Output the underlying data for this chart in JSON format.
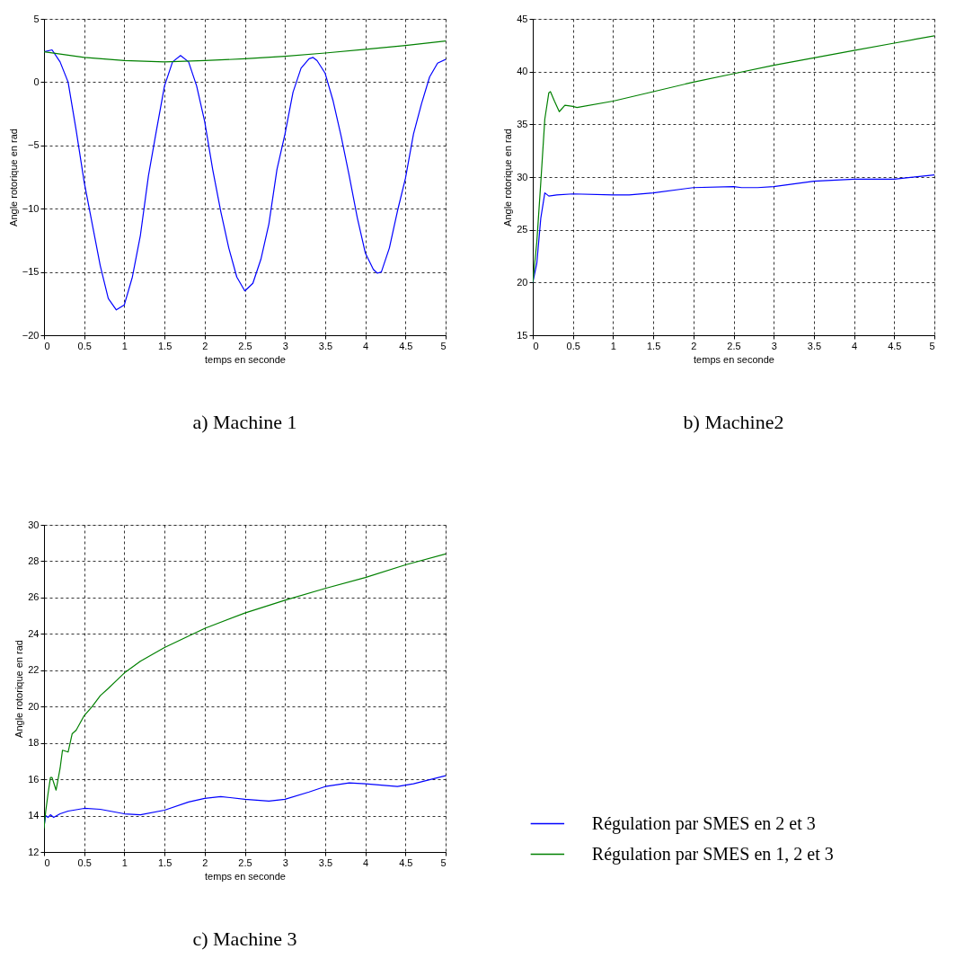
{
  "chart_data": [
    {
      "type": "line",
      "title": "a) Machine 1",
      "xlabel": "temps en seconde",
      "ylabel": "Angle rotorique en rad",
      "xlim": [
        0,
        5
      ],
      "xticks": [
        0,
        0.5,
        1,
        1.5,
        2,
        2.5,
        3,
        3.5,
        4,
        4.5,
        5
      ],
      "ylim": [
        -20,
        5
      ],
      "yticks": [
        -20,
        -15,
        -10,
        -5,
        0,
        5
      ],
      "grid": true,
      "line_style": "solid",
      "series": [
        {
          "color": "#0000ff",
          "x": [
            0,
            0.1,
            0.2,
            0.3,
            0.4,
            0.5,
            0.6,
            0.7,
            0.8,
            0.9,
            1.0,
            1.1,
            1.2,
            1.3,
            1.4,
            1.5,
            1.6,
            1.7,
            1.8,
            1.9,
            2.0,
            2.1,
            2.2,
            2.3,
            2.4,
            2.5,
            2.6,
            2.7,
            2.8,
            2.9,
            3.0,
            3.1,
            3.2,
            3.3,
            3.35,
            3.4,
            3.5,
            3.6,
            3.7,
            3.8,
            3.9,
            4.0,
            4.1,
            4.15,
            4.2,
            4.3,
            4.4,
            4.5,
            4.6,
            4.7,
            4.8,
            4.9,
            5.0
          ],
          "values": [
            2.4,
            2.55,
            1.6,
            0,
            -3.8,
            -7.9,
            -11.2,
            -14.5,
            -17.1,
            -18.0,
            -17.6,
            -15.4,
            -12.1,
            -7.4,
            -3.8,
            -0.3,
            1.6,
            2.1,
            1.6,
            -0.3,
            -3.1,
            -6.9,
            -10.2,
            -13.1,
            -15.4,
            -16.5,
            -15.9,
            -14.0,
            -11.2,
            -6.9,
            -4.1,
            -0.8,
            1.1,
            1.85,
            1.95,
            1.7,
            0.7,
            -1.5,
            -4.3,
            -7.4,
            -10.7,
            -13.5,
            -14.8,
            -15.1,
            -15.0,
            -13.1,
            -10.2,
            -7.6,
            -4.1,
            -1.7,
            0.4,
            1.5,
            1.8
          ]
        },
        {
          "color": "#008000",
          "x": [
            0,
            0.5,
            1.0,
            1.5,
            2.0,
            2.5,
            3.0,
            3.5,
            4.0,
            4.5,
            5.0
          ],
          "values": [
            2.4,
            1.95,
            1.7,
            1.6,
            1.7,
            1.85,
            2.05,
            2.3,
            2.6,
            2.9,
            3.25
          ]
        }
      ]
    },
    {
      "type": "line",
      "title": "b) Machine2",
      "xlabel": "temps en seconde",
      "ylabel": "Angle rotorique en rad",
      "xlim": [
        0,
        5
      ],
      "xticks": [
        0,
        0.5,
        1,
        1.5,
        2,
        2.5,
        3,
        3.5,
        4,
        4.5,
        5
      ],
      "ylim": [
        15,
        45
      ],
      "yticks": [
        15,
        20,
        25,
        30,
        35,
        40,
        45
      ],
      "grid": true,
      "line_style": "solid",
      "series": [
        {
          "color": "#0000ff",
          "x": [
            0,
            0.05,
            0.1,
            0.15,
            0.2,
            0.3,
            0.5,
            1.0,
            1.2,
            1.5,
            2.0,
            2.5,
            2.6,
            2.8,
            3.0,
            3.5,
            4.0,
            4.5,
            5.0
          ],
          "values": [
            20,
            21.8,
            26.1,
            28.5,
            28.2,
            28.3,
            28.4,
            28.3,
            28.3,
            28.5,
            29.0,
            29.1,
            29.0,
            29.0,
            29.1,
            29.6,
            29.8,
            29.8,
            30.2
          ]
        },
        {
          "color": "#008000",
          "x": [
            0,
            0.05,
            0.1,
            0.15,
            0.2,
            0.22,
            0.27,
            0.33,
            0.4,
            0.5,
            0.55,
            1.0,
            1.5,
            2.0,
            2.5,
            3.0,
            3.5,
            4.0,
            4.5,
            5.0
          ],
          "values": [
            20,
            23.8,
            29.5,
            35.5,
            38.0,
            38.1,
            37.2,
            36.2,
            36.8,
            36.7,
            36.6,
            37.2,
            38.1,
            39.0,
            39.8,
            40.6,
            41.3,
            42.0,
            42.7,
            43.4
          ]
        }
      ]
    },
    {
      "type": "line",
      "title": "c) Machine 3",
      "xlabel": "temps en seconde",
      "ylabel": "Angle rotorique en rad",
      "xlim": [
        0,
        5
      ],
      "xticks": [
        0,
        0.5,
        1,
        1.5,
        2,
        2.5,
        3,
        3.5,
        4,
        4.5,
        5
      ],
      "ylim": [
        12,
        30
      ],
      "yticks": [
        12,
        14,
        16,
        18,
        20,
        22,
        24,
        26,
        28,
        30
      ],
      "grid": true,
      "line_style": "solid",
      "legend": "bottom right",
      "series": [
        {
          "name": "Régulation par SMES en 2 et 3",
          "color": "#0000ff",
          "x": [
            0,
            0.02,
            0.05,
            0.08,
            0.12,
            0.2,
            0.3,
            0.5,
            0.7,
            1.0,
            1.2,
            1.5,
            1.8,
            2.0,
            2.2,
            2.5,
            2.8,
            3.0,
            3.3,
            3.5,
            3.8,
            4.0,
            4.4,
            4.6,
            5.0
          ],
          "values": [
            13.4,
            14.0,
            13.9,
            14.05,
            13.9,
            14.1,
            14.25,
            14.4,
            14.35,
            14.1,
            14.05,
            14.3,
            14.75,
            14.95,
            15.05,
            14.9,
            14.8,
            14.9,
            15.3,
            15.6,
            15.8,
            15.75,
            15.6,
            15.75,
            16.2
          ]
        },
        {
          "name": "Régulation par SMES en 1, 2 et 3",
          "color": "#008000",
          "x": [
            0,
            0.02,
            0.05,
            0.08,
            0.1,
            0.15,
            0.2,
            0.23,
            0.3,
            0.35,
            0.4,
            0.5,
            0.6,
            0.7,
            0.8,
            1.0,
            1.2,
            1.5,
            2.0,
            2.5,
            3.0,
            3.5,
            4.0,
            4.5,
            5.0
          ],
          "values": [
            13.3,
            14.2,
            15.2,
            16.1,
            16.1,
            15.4,
            16.6,
            17.6,
            17.5,
            18.5,
            18.7,
            19.5,
            20.0,
            20.6,
            21.0,
            21.85,
            22.5,
            23.25,
            24.3,
            25.15,
            25.85,
            26.5,
            27.1,
            27.8,
            28.4
          ]
        }
      ]
    }
  ]
}
